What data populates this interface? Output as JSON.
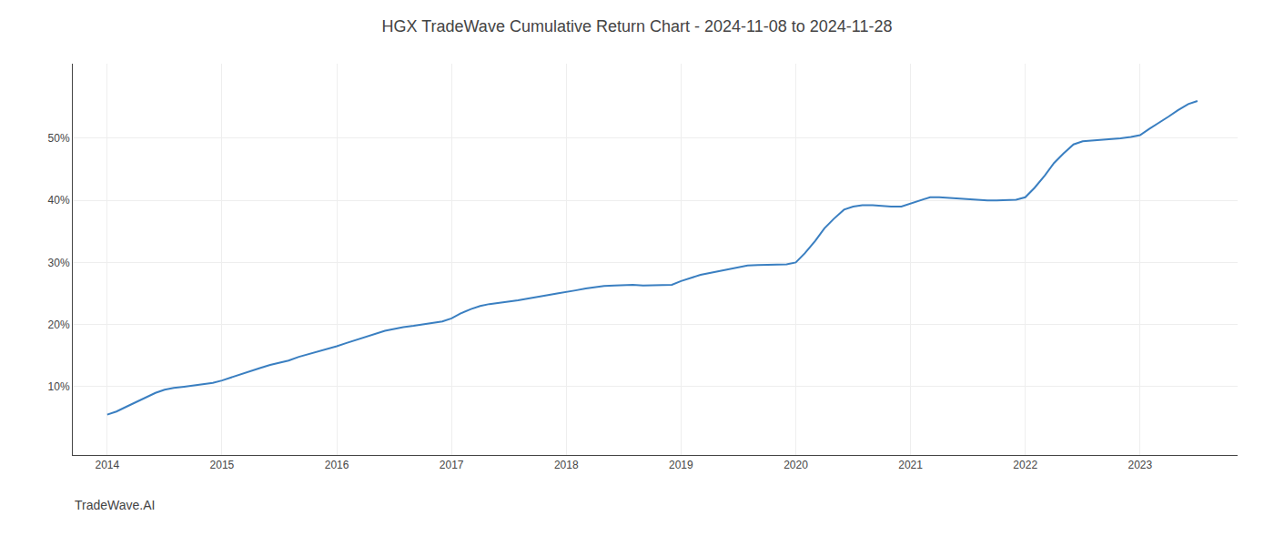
{
  "chart_data": {
    "type": "line",
    "title": "HGX TradeWave Cumulative Return Chart - 2024-11-08 to 2024-11-28",
    "annotations": [
      "TradeWave.AI"
    ],
    "x": [
      2014.0,
      2014.08,
      2014.17,
      2014.25,
      2014.33,
      2014.42,
      2014.5,
      2014.58,
      2014.67,
      2014.75,
      2014.83,
      2014.92,
      2015.0,
      2015.08,
      2015.17,
      2015.25,
      2015.33,
      2015.42,
      2015.5,
      2015.58,
      2015.67,
      2015.75,
      2015.83,
      2015.92,
      2016.0,
      2016.08,
      2016.17,
      2016.25,
      2016.33,
      2016.42,
      2016.5,
      2016.58,
      2016.67,
      2016.75,
      2016.83,
      2016.92,
      2017.0,
      2017.08,
      2017.17,
      2017.25,
      2017.33,
      2017.42,
      2017.5,
      2017.58,
      2017.67,
      2017.75,
      2017.83,
      2017.92,
      2018.0,
      2018.08,
      2018.17,
      2018.25,
      2018.33,
      2018.42,
      2018.5,
      2018.58,
      2018.67,
      2018.75,
      2018.83,
      2018.92,
      2019.0,
      2019.08,
      2019.17,
      2019.25,
      2019.33,
      2019.42,
      2019.5,
      2019.58,
      2019.67,
      2019.75,
      2019.83,
      2019.92,
      2020.0,
      2020.08,
      2020.17,
      2020.25,
      2020.33,
      2020.42,
      2020.5,
      2020.58,
      2020.67,
      2020.75,
      2020.83,
      2020.92,
      2021.0,
      2021.08,
      2021.17,
      2021.25,
      2021.33,
      2021.42,
      2021.5,
      2021.58,
      2021.67,
      2021.75,
      2021.83,
      2021.92,
      2022.0,
      2022.08,
      2022.17,
      2022.25,
      2022.33,
      2022.42,
      2022.5,
      2022.58,
      2022.67,
      2022.75,
      2022.83,
      2022.92,
      2023.0,
      2023.08,
      2023.17,
      2023.25,
      2023.33,
      2023.42,
      2023.5
    ],
    "values": [
      5.5,
      6.0,
      6.8,
      7.5,
      8.2,
      9.0,
      9.5,
      9.8,
      10.0,
      10.2,
      10.4,
      10.6,
      11.0,
      11.5,
      12.0,
      12.5,
      13.0,
      13.5,
      13.8,
      14.2,
      14.8,
      15.2,
      15.6,
      16.0,
      16.5,
      17.0,
      17.5,
      18.0,
      18.5,
      19.0,
      19.3,
      19.6,
      19.8,
      20.0,
      20.2,
      20.5,
      21.0,
      21.8,
      22.5,
      23.0,
      23.3,
      23.5,
      23.7,
      23.9,
      24.2,
      24.5,
      24.7,
      25.0,
      25.3,
      25.5,
      25.8,
      26.0,
      26.2,
      26.3,
      26.4,
      26.4,
      26.3,
      26.3,
      26.3,
      26.4,
      27.0,
      27.5,
      28.0,
      28.3,
      28.6,
      28.9,
      29.2,
      29.5,
      29.6,
      29.6,
      29.6,
      29.7,
      30.0,
      31.5,
      33.5,
      35.5,
      37.0,
      38.5,
      39.0,
      39.2,
      39.2,
      39.1,
      39.0,
      39.0,
      39.5,
      40.0,
      40.5,
      40.5,
      40.4,
      40.3,
      40.2,
      40.1,
      40.0,
      40.0,
      40.0,
      40.1,
      40.5,
      42.0,
      44.0,
      46.0,
      47.5,
      49.0,
      49.5,
      49.6,
      49.7,
      49.8,
      50.0,
      50.2,
      50.5,
      51.5,
      52.5,
      53.5,
      54.5,
      55.5,
      56.0
    ],
    "color": "#3a7fc1",
    "xlim": [
      2013.7,
      2023.85
    ],
    "xticks": [
      2014,
      2015,
      2016,
      2017,
      2018,
      2019,
      2020,
      2021,
      2022,
      2023
    ],
    "ylim": [
      -1,
      62
    ],
    "yticks": [
      {
        "value": 10,
        "label": "10%"
      },
      {
        "value": 20,
        "label": "20%"
      },
      {
        "value": 30,
        "label": "30%"
      },
      {
        "value": 40,
        "label": "40%"
      },
      {
        "value": 50,
        "label": "50%"
      }
    ],
    "grid": true
  }
}
